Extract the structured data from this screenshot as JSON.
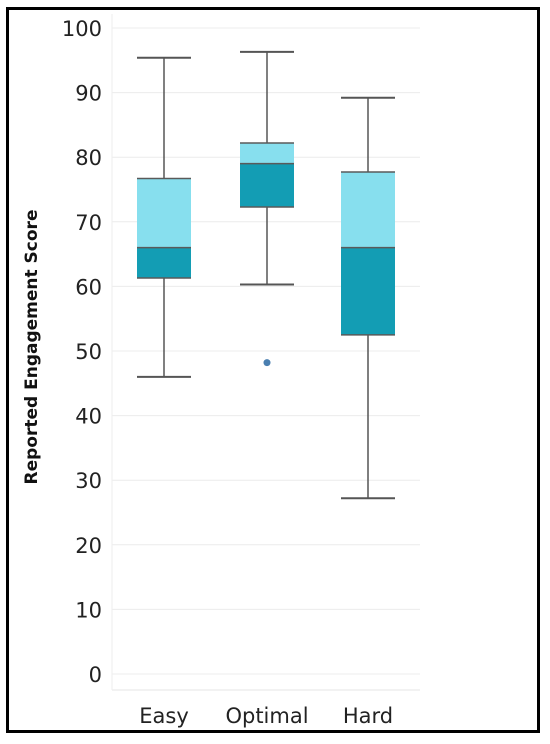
{
  "chart_data": {
    "type": "boxplot",
    "title": "",
    "xlabel": "",
    "ylabel": "Reported Engagement Score",
    "ylim": [
      0,
      100
    ],
    "yticks": [
      0,
      10,
      20,
      30,
      40,
      50,
      60,
      70,
      80,
      90,
      100
    ],
    "grid": true,
    "colors": {
      "upper_box": "#87dfee",
      "lower_box": "#139db4",
      "whisker": "#555555",
      "outlier": "#4a7fb0",
      "grid": "#ececec"
    },
    "categories": [
      "Easy",
      "Optimal",
      "Hard"
    ],
    "boxes": [
      {
        "category": "Easy",
        "min": 46,
        "q1": 61.3,
        "median": 66,
        "q3": 76.7,
        "max": 95.4,
        "outliers": []
      },
      {
        "category": "Optimal",
        "min": 60.3,
        "q1": 72.3,
        "median": 79,
        "q3": 82.2,
        "max": 96.3,
        "outliers": [
          48.2
        ]
      },
      {
        "category": "Hard",
        "min": 27.2,
        "q1": 52.5,
        "median": 66,
        "q3": 77.7,
        "max": 89.2,
        "outliers": []
      }
    ]
  }
}
